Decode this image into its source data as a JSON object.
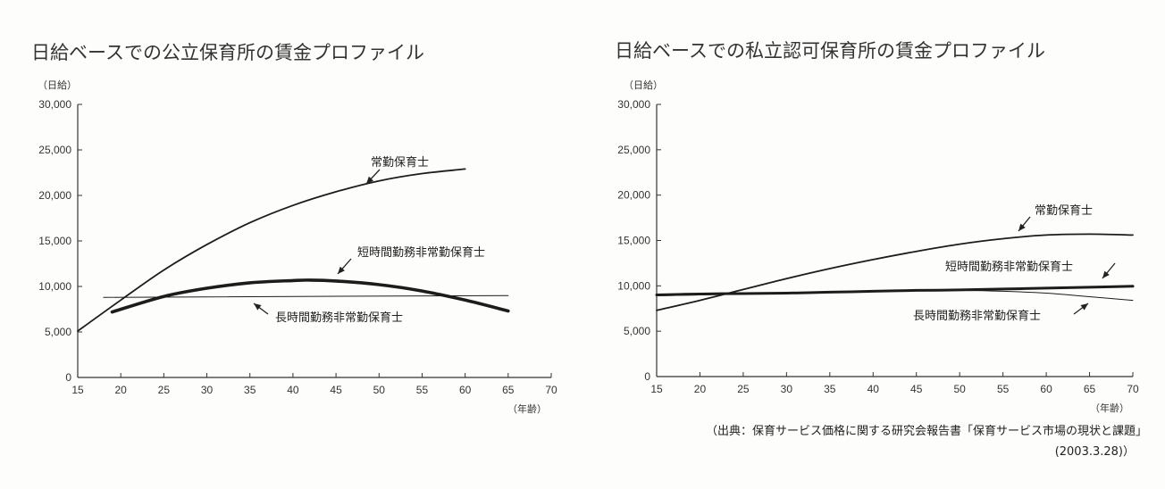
{
  "chart_data": [
    {
      "type": "line",
      "title": "日給ベースでの公立保育所の賃金プロファイル",
      "ylabel": "（日給）",
      "xlabel": "（年齢）",
      "xlim": [
        15,
        70
      ],
      "ylim": [
        0,
        30000
      ],
      "x_ticks": [
        15,
        20,
        25,
        30,
        35,
        40,
        45,
        50,
        55,
        60,
        65,
        70
      ],
      "y_ticks": [
        0,
        5000,
        10000,
        15000,
        20000,
        25000,
        30000
      ],
      "y_tick_labels": [
        "0",
        "5,000",
        "10,000",
        "15,000",
        "20,000",
        "25,000",
        "30,000"
      ],
      "grid": false,
      "series": [
        {
          "name": "常勤保育士",
          "x": [
            15,
            20,
            25,
            30,
            35,
            40,
            45,
            50,
            55,
            60
          ],
          "y": [
            5100,
            8500,
            11800,
            14600,
            17000,
            18900,
            20400,
            21600,
            22400,
            22900
          ]
        },
        {
          "name": "短時間勤務非常勤保育士",
          "x": [
            19,
            25,
            30,
            35,
            40,
            42,
            45,
            50,
            55,
            60,
            65
          ],
          "y": [
            7200,
            8900,
            9800,
            10400,
            10650,
            10700,
            10600,
            10200,
            9500,
            8500,
            7300
          ]
        },
        {
          "name": "長時間勤務非常勤保育士",
          "x": [
            18,
            65
          ],
          "y": [
            8800,
            9000
          ]
        }
      ]
    },
    {
      "type": "line",
      "title": "日給ベースでの私立認可保育所の賃金プロファイル",
      "ylabel": "（日給）",
      "xlabel": "（年齢）",
      "xlim": [
        15,
        70
      ],
      "ylim": [
        0,
        30000
      ],
      "x_ticks": [
        15,
        20,
        25,
        30,
        35,
        40,
        45,
        50,
        55,
        60,
        65,
        70
      ],
      "y_ticks": [
        0,
        5000,
        10000,
        15000,
        20000,
        25000,
        30000
      ],
      "y_tick_labels": [
        "0",
        "5,000",
        "10,000",
        "15,000",
        "20,000",
        "25,000",
        "30,000"
      ],
      "grid": false,
      "series": [
        {
          "name": "常勤保育士",
          "x": [
            15,
            20,
            25,
            30,
            35,
            40,
            45,
            50,
            55,
            60,
            65,
            70
          ],
          "y": [
            7300,
            8400,
            9600,
            10800,
            11900,
            12900,
            13800,
            14600,
            15200,
            15600,
            15700,
            15600
          ]
        },
        {
          "name": "短時間勤務非常勤保育士",
          "x": [
            15,
            20,
            25,
            30,
            35,
            40,
            45,
            50,
            55,
            60,
            65,
            70
          ],
          "y": [
            9000,
            9100,
            9150,
            9200,
            9300,
            9400,
            9500,
            9550,
            9650,
            9750,
            9850,
            9950
          ]
        },
        {
          "name": "長時間勤務非常勤保育士",
          "x": [
            15,
            20,
            25,
            30,
            35,
            40,
            45,
            50,
            55,
            60,
            65,
            70
          ],
          "y": [
            8900,
            9000,
            9100,
            9200,
            9300,
            9400,
            9500,
            9500,
            9400,
            9200,
            8800,
            8400
          ]
        }
      ]
    }
  ],
  "source_line1": "（出典：保育サービス価格に関する研究会報告書「保育サービス市場の現状と課題」",
  "source_line2": "(2003.3.28)）"
}
